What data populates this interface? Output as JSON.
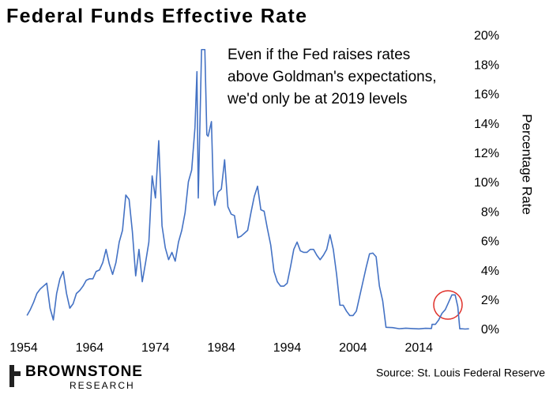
{
  "chart_data": {
    "type": "line",
    "title": "Federal Funds Effective Rate",
    "annotation": [
      "Even if the Fed raises rates",
      "above Goldman's expectations,",
      "we'd only be at 2019 levels"
    ],
    "y_label": "Percentage Rate",
    "source": "Source: St. Louis Federal Reserve",
    "brand": "BROWNSTONE",
    "brand_sub": "RESEARCH",
    "xlim": [
      1953.4,
      2022
    ],
    "xticks": [
      1954,
      1964,
      1974,
      1984,
      1994,
      2004,
      2014
    ],
    "ylim": [
      0,
      20
    ],
    "yticks": [
      {
        "value": 0,
        "label": "0%"
      },
      {
        "value": 2,
        "label": "2%"
      },
      {
        "value": 4,
        "label": "4%"
      },
      {
        "value": 6,
        "label": "6%"
      },
      {
        "value": 8,
        "label": "8%"
      },
      {
        "value": 10,
        "label": "10%"
      },
      {
        "value": 12,
        "label": "12%"
      },
      {
        "value": 14,
        "label": "14%"
      },
      {
        "value": 16,
        "label": "16%"
      },
      {
        "value": 18,
        "label": "18%"
      },
      {
        "value": 20,
        "label": "20%"
      }
    ],
    "grid": false,
    "y_axis_side": "right",
    "color": "#4472c4",
    "x": [
      1954.5,
      1955,
      1955.5,
      1956,
      1956.5,
      1957,
      1957.5,
      1958,
      1958.5,
      1959,
      1959.5,
      1960,
      1960.5,
      1961,
      1961.5,
      1962,
      1962.5,
      1963,
      1963.5,
      1964,
      1964.5,
      1965,
      1965.5,
      1966,
      1966.5,
      1967,
      1967.5,
      1968,
      1968.5,
      1969,
      1969.5,
      1970,
      1970.5,
      1971,
      1971.5,
      1972,
      1972.5,
      1973,
      1973.5,
      1974,
      1974.5,
      1975,
      1975.5,
      1976,
      1976.5,
      1977,
      1977.5,
      1978,
      1978.5,
      1979,
      1979.5,
      1980,
      1980.3,
      1980.5,
      1980.8,
      1981,
      1981.5,
      1981.8,
      1982,
      1982.5,
      1982.8,
      1983,
      1983.5,
      1984,
      1984.5,
      1985,
      1985.5,
      1986,
      1986.5,
      1987,
      1987.5,
      1988,
      1988.5,
      1989,
      1989.5,
      1990,
      1990.5,
      1991,
      1991.5,
      1992,
      1992.5,
      1993,
      1993.5,
      1994,
      1994.5,
      1995,
      1995.5,
      1996,
      1996.5,
      1997,
      1997.5,
      1998,
      1998.5,
      1999,
      1999.5,
      2000,
      2000.5,
      2001,
      2001.5,
      2002,
      2002.5,
      2003,
      2003.5,
      2004,
      2004.5,
      2005,
      2005.5,
      2006,
      2006.5,
      2007,
      2007.5,
      2008,
      2008.5,
      2009,
      2010,
      2011,
      2012,
      2013,
      2014,
      2015,
      2015.9,
      2016,
      2016.5,
      2017,
      2017.5,
      2018,
      2018.5,
      2019,
      2019.5,
      2019.9,
      2020.2,
      2020.5,
      2021,
      2021.6
    ],
    "values": [
      1.0,
      1.4,
      1.9,
      2.5,
      2.8,
      3.0,
      3.2,
      1.5,
      0.7,
      2.5,
      3.5,
      4.0,
      2.5,
      1.5,
      1.8,
      2.5,
      2.7,
      3.0,
      3.4,
      3.5,
      3.5,
      4.0,
      4.1,
      4.6,
      5.5,
      4.5,
      3.8,
      4.6,
      6.0,
      6.8,
      9.2,
      8.9,
      6.7,
      3.7,
      5.5,
      3.3,
      4.6,
      6.0,
      10.5,
      9.0,
      12.9,
      7.1,
      5.6,
      4.8,
      5.3,
      4.7,
      6.0,
      6.8,
      8.0,
      10.1,
      10.9,
      13.8,
      17.6,
      9.0,
      15.0,
      19.1,
      19.1,
      13.3,
      13.2,
      14.2,
      9.3,
      8.5,
      9.4,
      9.6,
      11.6,
      8.4,
      7.9,
      7.8,
      6.3,
      6.4,
      6.6,
      6.8,
      8.0,
      9.1,
      9.8,
      8.2,
      8.1,
      6.9,
      5.8,
      4.0,
      3.3,
      3.0,
      3.0,
      3.2,
      4.3,
      5.5,
      6.0,
      5.4,
      5.3,
      5.3,
      5.5,
      5.5,
      5.1,
      4.8,
      5.1,
      5.5,
      6.5,
      5.5,
      3.8,
      1.7,
      1.7,
      1.3,
      1.0,
      1.0,
      1.3,
      2.3,
      3.3,
      4.3,
      5.2,
      5.25,
      5.0,
      3.0,
      2.0,
      0.2,
      0.18,
      0.1,
      0.14,
      0.11,
      0.09,
      0.13,
      0.12,
      0.4,
      0.4,
      0.7,
      1.15,
      1.4,
      1.9,
      2.4,
      2.4,
      1.6,
      0.1,
      0.1,
      0.08,
      0.1
    ]
  }
}
